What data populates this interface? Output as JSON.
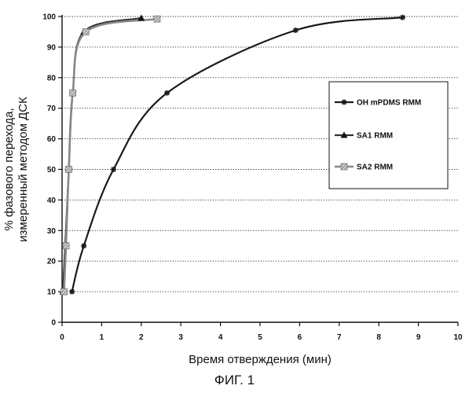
{
  "chart_data": {
    "type": "line",
    "title": "",
    "xlabel": "Время отверждения (мин)",
    "ylabel_lines": [
      "% фазового перехода,",
      "измеренный методом ДСК"
    ],
    "xlim": [
      0,
      10
    ],
    "ylim": [
      0,
      100
    ],
    "x_ticks": [
      0,
      1,
      2,
      3,
      4,
      5,
      6,
      7,
      8,
      9,
      10
    ],
    "y_ticks": [
      0,
      10,
      20,
      30,
      40,
      50,
      60,
      70,
      80,
      90,
      100
    ],
    "grid": "horizontal dotted",
    "legend_position": "right",
    "series": [
      {
        "name": "OH mPDMS RMM",
        "marker": "asterisk",
        "color": "#1a1a1a",
        "points": [
          [
            0.25,
            10
          ],
          [
            0.55,
            25
          ],
          [
            1.3,
            50
          ],
          [
            2.65,
            75
          ],
          [
            5.9,
            95.5
          ],
          [
            8.6,
            99.7
          ]
        ]
      },
      {
        "name": "SA1 RMM",
        "marker": "triangle",
        "color": "#333333",
        "points": [
          [
            0.02,
            10
          ],
          [
            0.08,
            25
          ],
          [
            0.17,
            50
          ],
          [
            0.27,
            75
          ],
          [
            0.55,
            95
          ],
          [
            2.0,
            99.5
          ]
        ]
      },
      {
        "name": "SA2 RMM",
        "marker": "hatched-square",
        "color": "#888888",
        "points": [
          [
            0.05,
            10
          ],
          [
            0.1,
            25
          ],
          [
            0.17,
            50
          ],
          [
            0.27,
            75
          ],
          [
            0.6,
            95
          ],
          [
            2.4,
            99.2
          ]
        ]
      }
    ]
  },
  "caption": "ФИГ. 1"
}
